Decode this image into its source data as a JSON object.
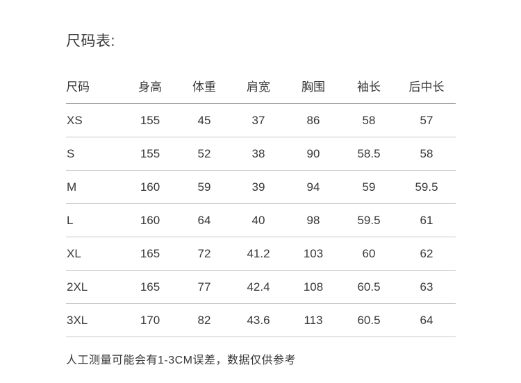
{
  "page": {
    "title": "尺码表:",
    "footer_note": "人工测量可能会有1-3CM误差，数据仅供参考"
  },
  "table": {
    "headers": [
      "尺码",
      "身高",
      "体重",
      "肩宽",
      "胸围",
      "袖长",
      "后中长"
    ],
    "rows": [
      {
        "size": "XS",
        "values": [
          "155",
          "45",
          "37",
          "86",
          "58",
          "57"
        ]
      },
      {
        "size": "S",
        "values": [
          "155",
          "52",
          "38",
          "90",
          "58.5",
          "58"
        ]
      },
      {
        "size": "M",
        "values": [
          "160",
          "59",
          "39",
          "94",
          "59",
          "59.5"
        ]
      },
      {
        "size": "L",
        "values": [
          "160",
          "64",
          "40",
          "98",
          "59.5",
          "61"
        ]
      },
      {
        "size": "XL",
        "values": [
          "165",
          "72",
          "41.2",
          "103",
          "60",
          "62"
        ]
      },
      {
        "size": "2XL",
        "values": [
          "165",
          "77",
          "42.4",
          "108",
          "60.5",
          "63"
        ]
      },
      {
        "size": "3XL",
        "values": [
          "170",
          "82",
          "43.6",
          "113",
          "60.5",
          "64"
        ]
      }
    ]
  },
  "colors": {
    "background": "#ffffff",
    "text": "#383838",
    "header_rule": "#7d7d7d",
    "row_rule": "#c6c6c6"
  }
}
